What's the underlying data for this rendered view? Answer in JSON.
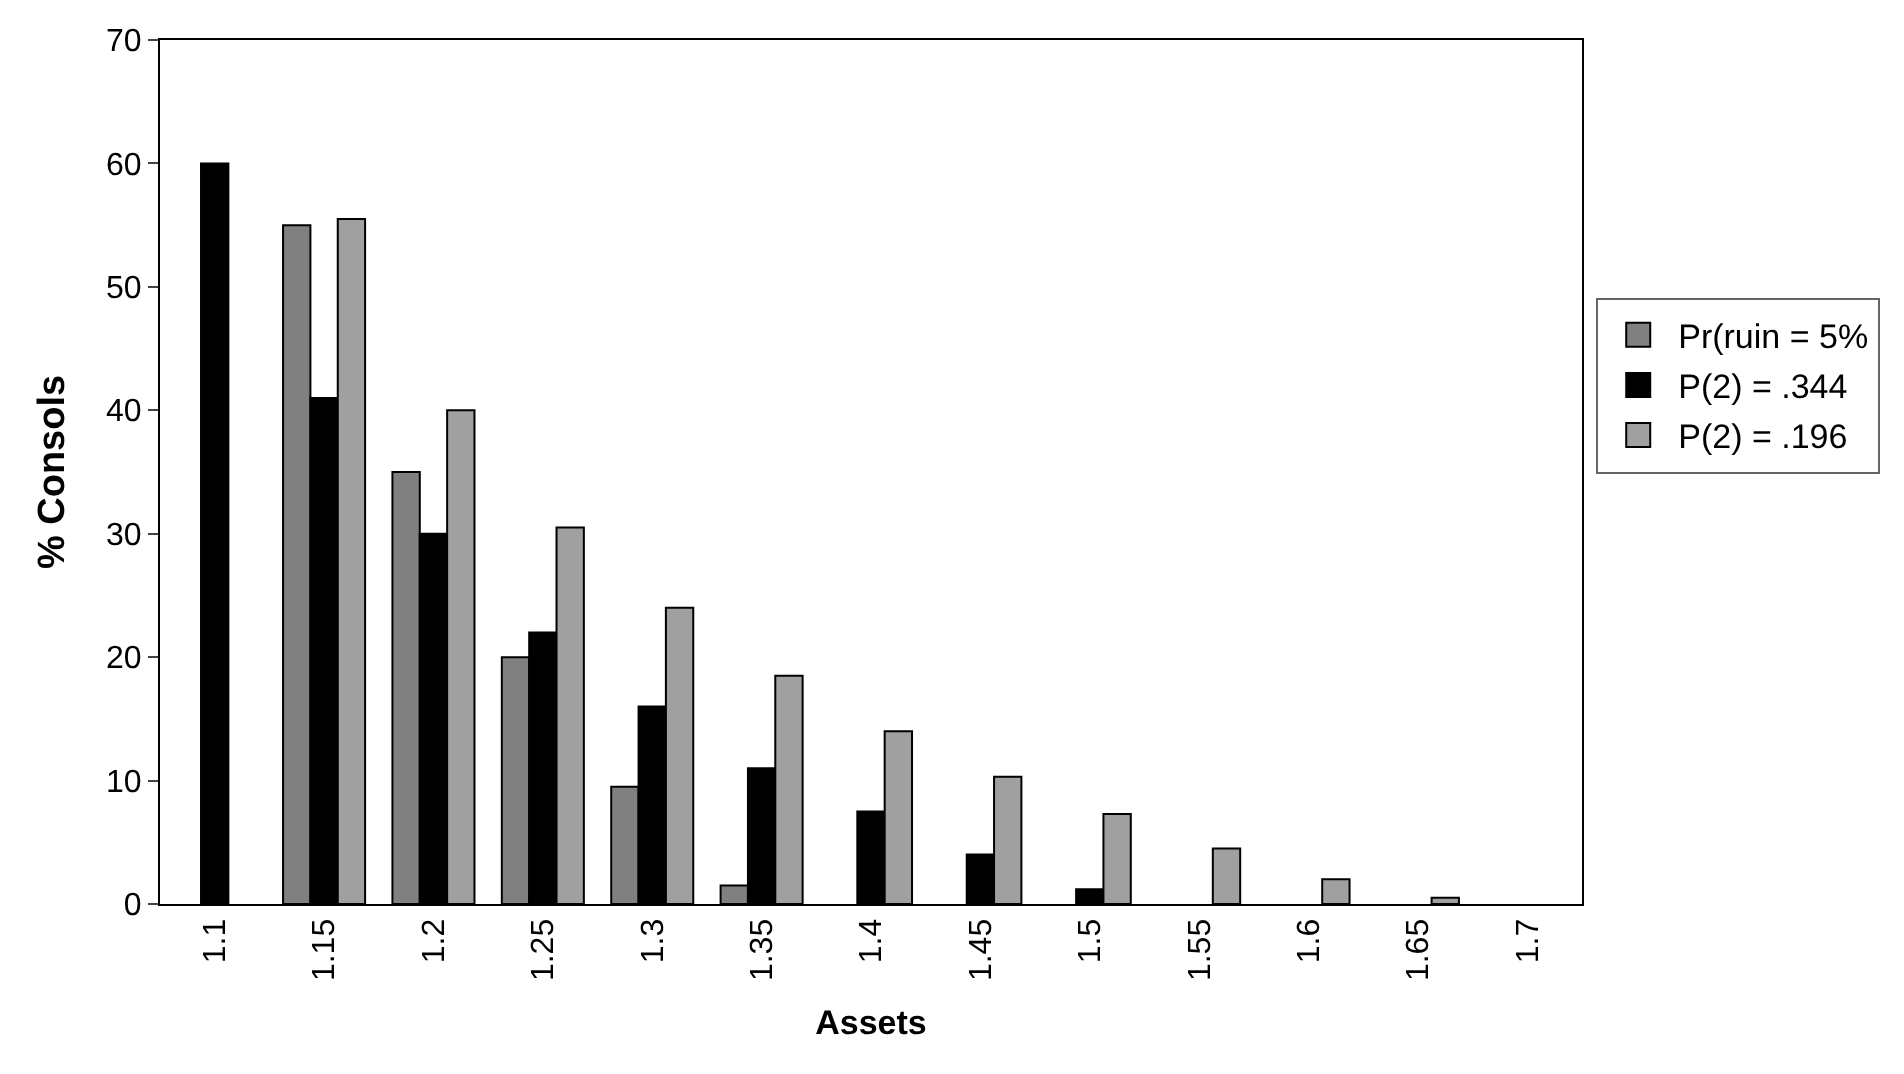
{
  "chart_data": {
    "type": "bar",
    "xlabel": "Assets",
    "ylabel": "% Consols",
    "categories": [
      "1.1",
      "1.15",
      "1.2",
      "1.25",
      "1.3",
      "1.35",
      "1.4",
      "1.45",
      "1.5",
      "1.55",
      "1.6",
      "1.65",
      "1.7"
    ],
    "series": [
      {
        "name": "Pr(ruin = 5%",
        "color": "#808080",
        "values": [
          null,
          55,
          35,
          20,
          9.5,
          1.5,
          null,
          null,
          null,
          null,
          null,
          null,
          null
        ]
      },
      {
        "name": "P(2) = .344",
        "color": "#000000",
        "values": [
          60,
          41,
          30,
          22,
          16,
          11,
          7.5,
          4,
          1.2,
          null,
          null,
          null,
          null
        ]
      },
      {
        "name": "P(2) = .196",
        "color": "#a0a0a0",
        "values": [
          null,
          55.5,
          40,
          30.5,
          24,
          18.5,
          14,
          10.3,
          7.3,
          4.5,
          2,
          0.5,
          null
        ]
      }
    ],
    "ylim": [
      0,
      70
    ],
    "yticks": [
      0,
      10,
      20,
      30,
      40,
      50,
      60,
      70
    ],
    "legend": "right"
  }
}
